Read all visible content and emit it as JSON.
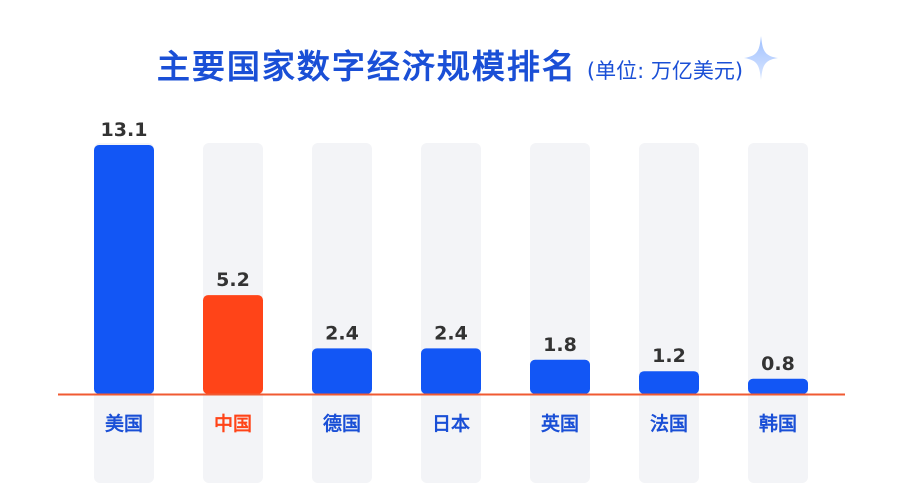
{
  "colors": {
    "primary_bar": "#1256f5",
    "highlight_bar": "#ff4418",
    "background_track": "#f3f4f7",
    "value_text": "#333333",
    "axis_line": "#f05a32",
    "title": "#1a4fd6"
  },
  "sparkle_icon": "four-point-star",
  "chart_data": {
    "type": "bar",
    "title": "主要国家数字经济规模排名",
    "subtitle": "(单位: 万亿美元)",
    "categories": [
      "美国",
      "中国",
      "德国",
      "日本",
      "英国",
      "法国",
      "韩国"
    ],
    "values": [
      13.1,
      5.2,
      2.4,
      2.4,
      1.8,
      1.2,
      0.8
    ],
    "value_labels": [
      "13.1",
      "5.2",
      "2.4",
      "2.4",
      "1.8",
      "1.2",
      "0.8"
    ],
    "highlight_category": "中国",
    "xlabel": "",
    "ylabel": "",
    "ylim": [
      0,
      13.1
    ],
    "grid": false,
    "legend": "none"
  }
}
